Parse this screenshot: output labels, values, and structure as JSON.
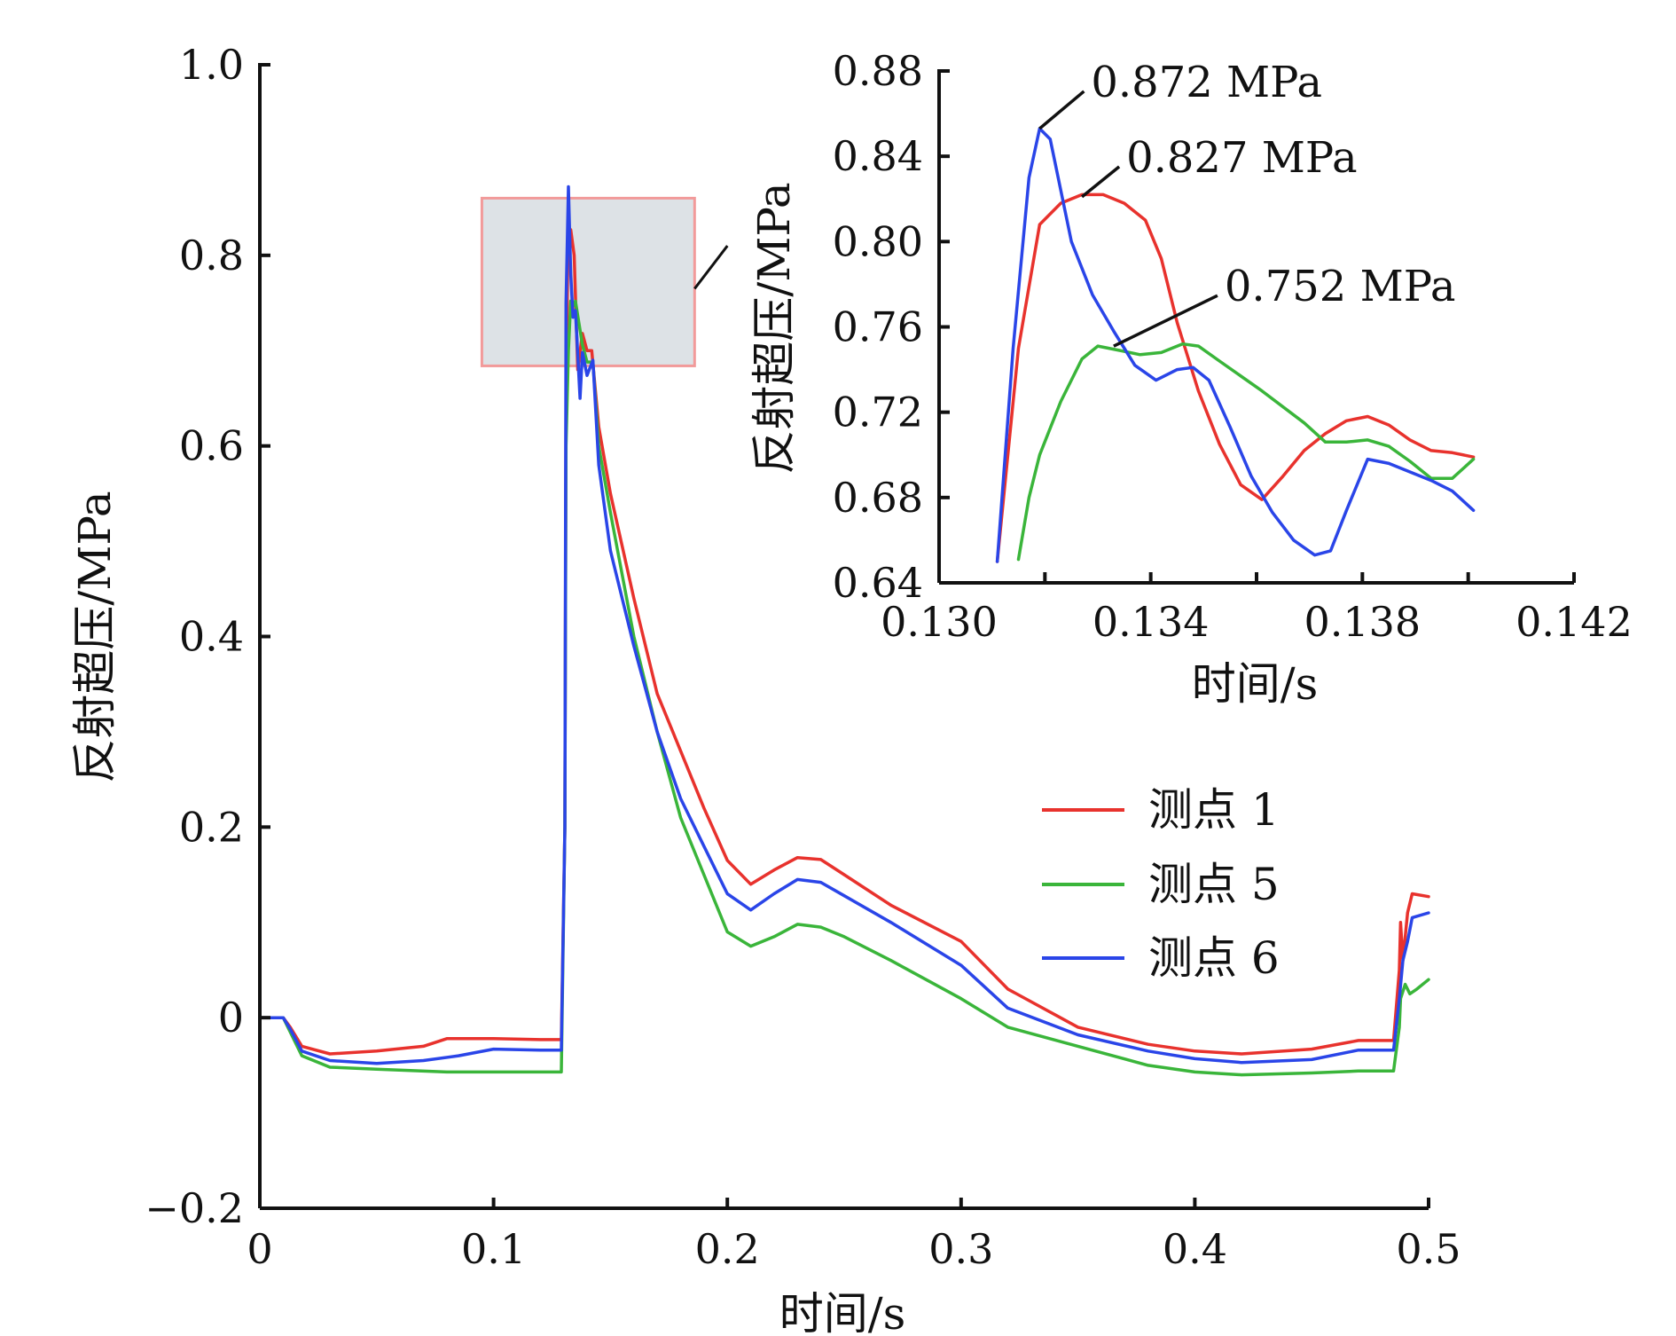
{
  "chart_data": [
    {
      "type": "line",
      "title": "",
      "xlabel": "时间/s",
      "ylabel": "反射超压/MPa",
      "xlim": [
        0,
        0.5
      ],
      "ylim": [
        -0.2,
        1.0
      ],
      "xticks": [
        0,
        0.1,
        0.2,
        0.3,
        0.4,
        0.5
      ],
      "xtick_labels": [
        "0",
        "0.1",
        "0.2",
        "0.3",
        "0.4",
        "0.5"
      ],
      "yticks": [
        -0.2,
        0,
        0.2,
        0.4,
        0.6,
        0.8,
        1.0
      ],
      "ytick_labels": [
        "−0.2",
        "0",
        "0.2",
        "0.4",
        "0.6",
        "0.8",
        "1.0"
      ],
      "grid": false,
      "legend_position": "center-right",
      "zoom_box": {
        "x": [
          0.095,
          0.186
        ],
        "y": [
          0.684,
          0.86
        ]
      },
      "series": [
        {
          "name": "测点 1",
          "color": "#e8322d",
          "points": [
            [
              0,
              0
            ],
            [
              0.01,
              0
            ],
            [
              0.013,
              -0.01
            ],
            [
              0.018,
              -0.03
            ],
            [
              0.03,
              -0.038
            ],
            [
              0.05,
              -0.035
            ],
            [
              0.07,
              -0.03
            ],
            [
              0.08,
              -0.022
            ],
            [
              0.1,
              -0.022
            ],
            [
              0.12,
              -0.023
            ],
            [
              0.129,
              -0.023
            ],
            [
              0.1305,
              0.2
            ],
            [
              0.131,
              0.65
            ],
            [
              0.1318,
              0.81
            ],
            [
              0.133,
              0.827
            ],
            [
              0.1345,
              0.8
            ],
            [
              0.136,
              0.68
            ],
            [
              0.138,
              0.718
            ],
            [
              0.14,
              0.7
            ],
            [
              0.142,
              0.7
            ],
            [
              0.145,
              0.62
            ],
            [
              0.15,
              0.55
            ],
            [
              0.16,
              0.44
            ],
            [
              0.17,
              0.34
            ],
            [
              0.18,
              0.28
            ],
            [
              0.19,
              0.22
            ],
            [
              0.2,
              0.165
            ],
            [
              0.21,
              0.14
            ],
            [
              0.22,
              0.155
            ],
            [
              0.23,
              0.168
            ],
            [
              0.24,
              0.166
            ],
            [
              0.25,
              0.15
            ],
            [
              0.27,
              0.118
            ],
            [
              0.3,
              0.08
            ],
            [
              0.32,
              0.03
            ],
            [
              0.35,
              -0.01
            ],
            [
              0.38,
              -0.028
            ],
            [
              0.4,
              -0.035
            ],
            [
              0.42,
              -0.038
            ],
            [
              0.45,
              -0.033
            ],
            [
              0.47,
              -0.024
            ],
            [
              0.485,
              -0.024
            ],
            [
              0.4875,
              0.05
            ],
            [
              0.488,
              0.1
            ],
            [
              0.489,
              0.06
            ],
            [
              0.491,
              0.11
            ],
            [
              0.493,
              0.13
            ],
            [
              0.5,
              0.127
            ]
          ]
        },
        {
          "name": "测点 5",
          "color": "#3ab53a",
          "points": [
            [
              0,
              0
            ],
            [
              0.01,
              0
            ],
            [
              0.013,
              -0.015
            ],
            [
              0.018,
              -0.04
            ],
            [
              0.03,
              -0.052
            ],
            [
              0.05,
              -0.054
            ],
            [
              0.08,
              -0.057
            ],
            [
              0.1,
              -0.057
            ],
            [
              0.12,
              -0.057
            ],
            [
              0.129,
              -0.057
            ],
            [
              0.1305,
              0.2
            ],
            [
              0.131,
              0.6
            ],
            [
              0.132,
              0.7
            ],
            [
              0.133,
              0.752
            ],
            [
              0.134,
              0.747
            ],
            [
              0.135,
              0.752
            ],
            [
              0.138,
              0.706
            ],
            [
              0.14,
              0.688
            ],
            [
              0.1425,
              0.688
            ],
            [
              0.145,
              0.6
            ],
            [
              0.15,
              0.53
            ],
            [
              0.16,
              0.4
            ],
            [
              0.17,
              0.3
            ],
            [
              0.18,
              0.21
            ],
            [
              0.19,
              0.15
            ],
            [
              0.2,
              0.09
            ],
            [
              0.21,
              0.075
            ],
            [
              0.22,
              0.085
            ],
            [
              0.23,
              0.098
            ],
            [
              0.24,
              0.095
            ],
            [
              0.25,
              0.085
            ],
            [
              0.27,
              0.06
            ],
            [
              0.3,
              0.02
            ],
            [
              0.32,
              -0.01
            ],
            [
              0.35,
              -0.03
            ],
            [
              0.38,
              -0.05
            ],
            [
              0.4,
              -0.057
            ],
            [
              0.42,
              -0.06
            ],
            [
              0.45,
              -0.058
            ],
            [
              0.47,
              -0.056
            ],
            [
              0.485,
              -0.056
            ],
            [
              0.4875,
              -0.01
            ],
            [
              0.488,
              0.02
            ],
            [
              0.49,
              0.035
            ],
            [
              0.492,
              0.025
            ],
            [
              0.495,
              0.03
            ],
            [
              0.5,
              0.04
            ]
          ]
        },
        {
          "name": "测点 6",
          "color": "#2a45e8",
          "points": [
            [
              0,
              0
            ],
            [
              0.01,
              0
            ],
            [
              0.013,
              -0.012
            ],
            [
              0.018,
              -0.035
            ],
            [
              0.03,
              -0.045
            ],
            [
              0.05,
              -0.048
            ],
            [
              0.07,
              -0.045
            ],
            [
              0.085,
              -0.04
            ],
            [
              0.1,
              -0.033
            ],
            [
              0.12,
              -0.034
            ],
            [
              0.129,
              -0.034
            ],
            [
              0.1305,
              0.2
            ],
            [
              0.131,
              0.75
            ],
            [
              0.132,
              0.872
            ],
            [
              0.133,
              0.78
            ],
            [
              0.134,
              0.735
            ],
            [
              0.135,
              0.742
            ],
            [
              0.137,
              0.65
            ],
            [
              0.138,
              0.698
            ],
            [
              0.14,
              0.674
            ],
            [
              0.1425,
              0.69
            ],
            [
              0.145,
              0.58
            ],
            [
              0.15,
              0.49
            ],
            [
              0.16,
              0.39
            ],
            [
              0.17,
              0.3
            ],
            [
              0.18,
              0.23
            ],
            [
              0.19,
              0.18
            ],
            [
              0.2,
              0.13
            ],
            [
              0.21,
              0.113
            ],
            [
              0.22,
              0.13
            ],
            [
              0.23,
              0.145
            ],
            [
              0.24,
              0.142
            ],
            [
              0.25,
              0.128
            ],
            [
              0.27,
              0.1
            ],
            [
              0.3,
              0.055
            ],
            [
              0.32,
              0.01
            ],
            [
              0.35,
              -0.018
            ],
            [
              0.38,
              -0.035
            ],
            [
              0.4,
              -0.043
            ],
            [
              0.42,
              -0.047
            ],
            [
              0.45,
              -0.044
            ],
            [
              0.47,
              -0.034
            ],
            [
              0.485,
              -0.034
            ],
            [
              0.4875,
              0.02
            ],
            [
              0.489,
              0.06
            ],
            [
              0.491,
              0.08
            ],
            [
              0.493,
              0.105
            ],
            [
              0.5,
              0.11
            ]
          ]
        }
      ]
    },
    {
      "type": "line",
      "title": "",
      "xlabel": "时间/s",
      "ylabel": "反射超压/MPa",
      "xlim": [
        0.13,
        0.142
      ],
      "ylim": [
        0.64,
        0.88
      ],
      "xticks": [
        0.13,
        0.134,
        0.138,
        0.142
      ],
      "xtick_labels": [
        "0.130",
        "0.134",
        "0.138",
        "0.142"
      ],
      "minor_xticks": [
        0.132,
        0.136,
        0.14
      ],
      "yticks": [
        0.64,
        0.68,
        0.72,
        0.76,
        0.8,
        0.84,
        0.88
      ],
      "ytick_labels": [
        "0.64",
        "0.68",
        "0.72",
        "0.76",
        "0.80",
        "0.84",
        "0.88"
      ],
      "grid": false,
      "annotations": [
        {
          "text": "0.872 MPa",
          "x": 0.1319,
          "y": 0.853
        },
        {
          "text": "0.827 MPa",
          "x": 0.1327,
          "y": 0.821
        },
        {
          "text": "0.752 MPa",
          "x": 0.1333,
          "y": 0.751
        }
      ],
      "series": [
        {
          "name": "测点 1",
          "color": "#e8322d",
          "points": [
            [
              0.1311,
              0.65
            ],
            [
              0.1315,
              0.75
            ],
            [
              0.1319,
              0.808
            ],
            [
              0.1323,
              0.818
            ],
            [
              0.1327,
              0.822
            ],
            [
              0.1331,
              0.822
            ],
            [
              0.1335,
              0.818
            ],
            [
              0.1339,
              0.81
            ],
            [
              0.1342,
              0.792
            ],
            [
              0.1345,
              0.762
            ],
            [
              0.1349,
              0.73
            ],
            [
              0.1353,
              0.705
            ],
            [
              0.1357,
              0.686
            ],
            [
              0.1361,
              0.679
            ],
            [
              0.1365,
              0.69
            ],
            [
              0.1369,
              0.702
            ],
            [
              0.1373,
              0.71
            ],
            [
              0.1377,
              0.716
            ],
            [
              0.1381,
              0.718
            ],
            [
              0.1385,
              0.714
            ],
            [
              0.1389,
              0.707
            ],
            [
              0.1393,
              0.702
            ],
            [
              0.1397,
              0.701
            ],
            [
              0.1401,
              0.699
            ]
          ]
        },
        {
          "name": "测点 5",
          "color": "#3ab53a",
          "points": [
            [
              0.1315,
              0.651
            ],
            [
              0.1317,
              0.68
            ],
            [
              0.1319,
              0.7
            ],
            [
              0.1323,
              0.725
            ],
            [
              0.1327,
              0.745
            ],
            [
              0.133,
              0.751
            ],
            [
              0.1334,
              0.749
            ],
            [
              0.1338,
              0.747
            ],
            [
              0.1342,
              0.748
            ],
            [
              0.1346,
              0.752
            ],
            [
              0.1349,
              0.751
            ],
            [
              0.1353,
              0.744
            ],
            [
              0.1361,
              0.73
            ],
            [
              0.1369,
              0.715
            ],
            [
              0.1373,
              0.706
            ],
            [
              0.1377,
              0.706
            ],
            [
              0.1381,
              0.707
            ],
            [
              0.1385,
              0.704
            ],
            [
              0.1389,
              0.697
            ],
            [
              0.1393,
              0.689
            ],
            [
              0.1397,
              0.689
            ],
            [
              0.1401,
              0.698
            ]
          ]
        },
        {
          "name": "测点 6",
          "color": "#2a45e8",
          "points": [
            [
              0.1311,
              0.65
            ],
            [
              0.1314,
              0.75
            ],
            [
              0.1317,
              0.83
            ],
            [
              0.1319,
              0.853
            ],
            [
              0.1321,
              0.848
            ],
            [
              0.1325,
              0.8
            ],
            [
              0.1329,
              0.775
            ],
            [
              0.1333,
              0.758
            ],
            [
              0.1337,
              0.742
            ],
            [
              0.1341,
              0.735
            ],
            [
              0.1345,
              0.74
            ],
            [
              0.1348,
              0.741
            ],
            [
              0.1351,
              0.735
            ],
            [
              0.1355,
              0.713
            ],
            [
              0.1359,
              0.69
            ],
            [
              0.1363,
              0.673
            ],
            [
              0.1367,
              0.66
            ],
            [
              0.1371,
              0.653
            ],
            [
              0.1374,
              0.655
            ],
            [
              0.1377,
              0.674
            ],
            [
              0.1381,
              0.698
            ],
            [
              0.1385,
              0.696
            ],
            [
              0.1389,
              0.692
            ],
            [
              0.1393,
              0.688
            ],
            [
              0.1397,
              0.683
            ],
            [
              0.1401,
              0.674
            ]
          ]
        }
      ]
    }
  ],
  "legend": {
    "items": [
      {
        "label": "测点 1",
        "color": "#e8322d"
      },
      {
        "label": "测点 5",
        "color": "#3ab53a"
      },
      {
        "label": "测点 6",
        "color": "#2a45e8"
      }
    ]
  }
}
